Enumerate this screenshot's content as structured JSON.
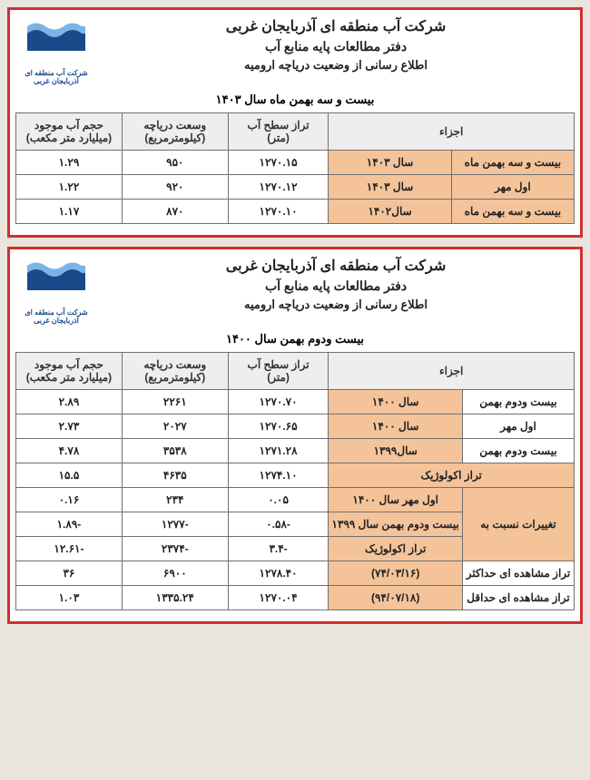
{
  "common": {
    "org": "شرکت آب منطقه ای آذربایجان غربی",
    "dept": "دفتر مطالعات پایه منابع آب",
    "subject": "اطلاع رسانی از وضعیت دریاچه ارومیه",
    "logo_caption": "شرکت آب منطقه ای آذربایجان غربی",
    "logo_colors": {
      "dark": "#1a4a8a",
      "light": "#7db4e6",
      "white": "#ffffff"
    }
  },
  "panel1": {
    "date": "بیست و سه بهمن ماه  سال ۱۴۰۳",
    "headers": {
      "components": "اجزاء",
      "level": "تراز سطح آب",
      "level_unit": "(متر)",
      "area": "وسعت دریاچه",
      "area_unit": "(کیلومترمربع)",
      "volume": "حجم آب موجود",
      "volume_unit": "(میلیارد متر مکعب)"
    },
    "rows": [
      {
        "c1": "بیست و سه بهمن ماه",
        "c2": "سال ۱۴۰۳",
        "level": "۱۲۷۰.۱۵",
        "area": "۹۵۰",
        "volume": "۱.۲۹"
      },
      {
        "c1": "اول مهر",
        "c2": "سال ۱۴۰۳",
        "level": "۱۲۷۰.۱۲",
        "area": "۹۲۰",
        "volume": "۱.۲۲"
      },
      {
        "c1": "بیست و سه بهمن ماه",
        "c2": "سال۱۴۰۲",
        "level": "۱۲۷۰.۱۰",
        "area": "۸۷۰",
        "volume": "۱.۱۷"
      }
    ]
  },
  "panel2": {
    "date": "بیست ودوم بهمن  سال ۱۴۰۰",
    "headers": {
      "components": "اجزاء",
      "level": "تراز سطح آب",
      "level_unit": "(متر)",
      "area": "وسعت دریاچه",
      "area_unit": "(کیلومترمربع)",
      "volume": "حجم آب موجود",
      "volume_unit": "(میلیارد متر مکعب)"
    },
    "rows": [
      {
        "c1": "بیست ودوم بهمن",
        "c2": "سال ۱۴۰۰",
        "level": "۱۲۷۰.۷۰",
        "area": "۲۲۶۱",
        "volume": "۲.۸۹",
        "peach_c2": true
      },
      {
        "c1": "اول مهر",
        "c2": "سال ۱۴۰۰",
        "level": "۱۲۷۰.۶۵",
        "area": "۲۰۲۷",
        "volume": "۲.۷۳",
        "peach_c2": true
      },
      {
        "c1": "بیست ودوم بهمن",
        "c2": "سال۱۳۹۹",
        "level": "۱۲۷۱.۲۸",
        "area": "۳۵۳۸",
        "volume": "۴.۷۸",
        "peach_c2": true
      },
      {
        "span": "تراز اکولوژیک",
        "level": "۱۲۷۴.۱۰",
        "area": "۴۶۳۵",
        "volume": "۱۵.۵"
      },
      {
        "group": "تغییرات نسبت به",
        "c2": "اول مهر سال ۱۴۰۰",
        "level": "۰.۰۵",
        "area": "۲۳۴",
        "volume": "۰.۱۶"
      },
      {
        "c2": "بیست ودوم بهمن سال ۱۳۹۹",
        "level": "-۰.۵۸",
        "area": "-۱۲۷۷",
        "volume": "-۱.۸۹"
      },
      {
        "c2": "تراز اکولوژیک",
        "level": "-۳.۴",
        "area": "-۲۳۷۴",
        "volume": "-۱۲.۶۱"
      },
      {
        "c1": "تراز مشاهده ای حداکثر",
        "c2": "(۷۴/۰۳/۱۶)",
        "level": "۱۲۷۸.۴۰",
        "area": "۶۹۰۰",
        "volume": "۳۶"
      },
      {
        "c1": "تراز مشاهده ای حداقل",
        "c2": "(۹۴/۰۷/۱۸)",
        "level": "۱۲۷۰.۰۴",
        "area": "۱۳۳۵.۲۴",
        "volume": "۱.۰۳"
      }
    ]
  }
}
